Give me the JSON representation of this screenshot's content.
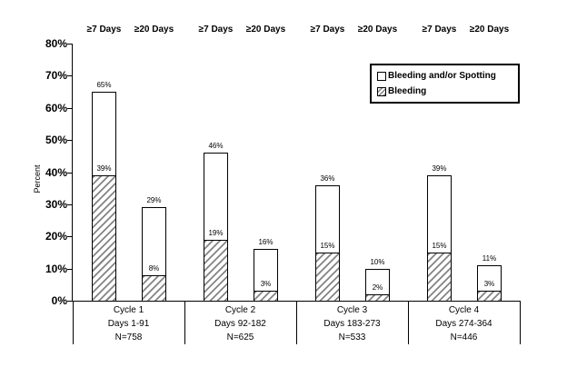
{
  "chart_data": {
    "type": "bar",
    "subtype": "overlay-stacked-percent",
    "title": "",
    "xlabel": "",
    "ylabel": "Percent",
    "ylim": [
      0,
      80
    ],
    "ytick_step": 10,
    "yticks": [
      "0%",
      "10%",
      "20%",
      "30%",
      "40%",
      "50%",
      "60%",
      "70%",
      "80%"
    ],
    "grid": "off",
    "bar_headers": [
      "≥7 Days",
      "≥20 Days"
    ],
    "legend": {
      "position": "top-right-inside",
      "items": [
        {
          "label": "Bleeding and/or Spotting",
          "swatch": "white-square"
        },
        {
          "label": "Bleeding",
          "swatch": "hatched-square"
        }
      ]
    },
    "series": [
      {
        "name": "Bleeding and/or Spotting",
        "values": [
          65,
          29,
          46,
          16,
          36,
          10,
          39,
          11
        ]
      },
      {
        "name": "Bleeding",
        "values": [
          39,
          8,
          19,
          3,
          15,
          2,
          15,
          3
        ]
      }
    ],
    "groups": [
      {
        "label_lines": [
          "Cycle 1",
          "Days 1-91",
          "N=758"
        ],
        "bars": [
          {
            "header": "≥7 Days",
            "bleeding_or_spotting_pct": 65,
            "bleeding_pct": 39
          },
          {
            "header": "≥20 Days",
            "bleeding_or_spotting_pct": 29,
            "bleeding_pct": 8
          }
        ]
      },
      {
        "label_lines": [
          "Cycle 2",
          "Days 92-182",
          "N=625"
        ],
        "bars": [
          {
            "header": "≥7 Days",
            "bleeding_or_spotting_pct": 46,
            "bleeding_pct": 19
          },
          {
            "header": "≥20 Days",
            "bleeding_or_spotting_pct": 16,
            "bleeding_pct": 3
          }
        ]
      },
      {
        "label_lines": [
          "Cycle 3",
          "Days 183-273",
          "N=533"
        ],
        "bars": [
          {
            "header": "≥7 Days",
            "bleeding_or_spotting_pct": 36,
            "bleeding_pct": 15
          },
          {
            "header": "≥20 Days",
            "bleeding_or_spotting_pct": 10,
            "bleeding_pct": 2
          }
        ]
      },
      {
        "label_lines": [
          "Cycle 4",
          "Days 274-364",
          "N=446"
        ],
        "bars": [
          {
            "header": "≥7 Days",
            "bleeding_or_spotting_pct": 39,
            "bleeding_pct": 15
          },
          {
            "header": "≥20 Days",
            "bleeding_or_spotting_pct": 11,
            "bleeding_pct": 3
          }
        ]
      }
    ],
    "colors": {
      "background": "#ffffff",
      "bar_fill": "#ffffff",
      "bar_border": "#000000",
      "hatch_line": "#848484",
      "text": "#000000"
    }
  }
}
